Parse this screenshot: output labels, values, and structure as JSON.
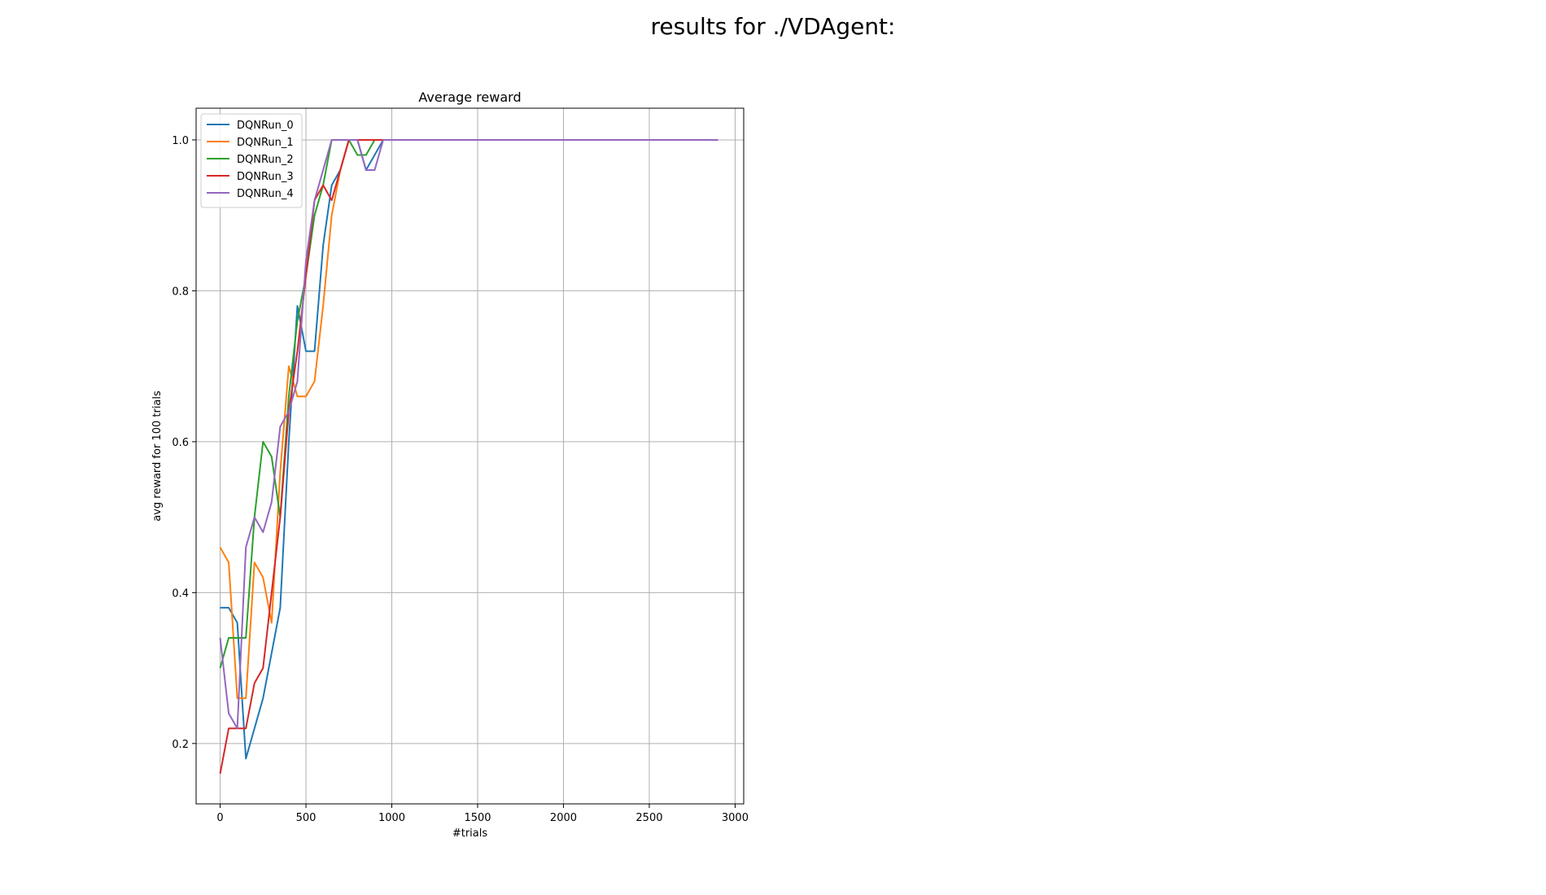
{
  "figure": {
    "title": "results for ./VDAgent:"
  },
  "chart_data": {
    "type": "line",
    "title": "Average reward",
    "xlabel": "#trials",
    "ylabel": "avg reward for 100 trials",
    "xlim": [
      -140,
      3050
    ],
    "ylim": [
      0.12,
      1.042
    ],
    "xticks": [
      0,
      500,
      1000,
      1500,
      2000,
      2500,
      3000
    ],
    "yticks": [
      0.2,
      0.4,
      0.6,
      0.8,
      1.0
    ],
    "xtick_labels": [
      "0",
      "500",
      "1000",
      "1500",
      "2000",
      "2500",
      "3000"
    ],
    "ytick_labels": [
      "0.2",
      "0.4",
      "0.6",
      "0.8",
      "1.0"
    ],
    "grid": true,
    "legend_position": "upper-left",
    "x": [
      0,
      50,
      100,
      150,
      200,
      250,
      300,
      350,
      400,
      450,
      500,
      550,
      600,
      650,
      700,
      750,
      800,
      850,
      900,
      950,
      1000,
      1050,
      1100,
      1150,
      1200,
      1250,
      1300,
      1350,
      1400,
      1450,
      1500,
      1550,
      1600,
      1650,
      1700,
      1750,
      1800,
      1850,
      1900,
      1950,
      2000,
      2050,
      2100,
      2150,
      2200,
      2250,
      2300,
      2350,
      2400,
      2450,
      2500,
      2550,
      2600,
      2650,
      2700,
      2750,
      2800,
      2850,
      2900
    ],
    "series": [
      {
        "name": "DQNRun_0",
        "color": "#1f77b4",
        "values": [
          0.38,
          0.38,
          0.36,
          0.18,
          0.22,
          0.26,
          0.32,
          0.38,
          0.6,
          0.78,
          0.72,
          0.72,
          0.86,
          0.94,
          0.96,
          1.0,
          1.0,
          0.96,
          0.98,
          1.0,
          1.0,
          1.0,
          1.0,
          1.0,
          1.0,
          1.0,
          1.0,
          1.0,
          1.0,
          1.0,
          1.0,
          1.0,
          1.0,
          1.0,
          1.0,
          1.0,
          1.0,
          1.0,
          1.0,
          1.0,
          1.0,
          1.0,
          1.0,
          1.0,
          1.0,
          1.0,
          1.0,
          1.0,
          1.0,
          1.0,
          1.0,
          1.0,
          1.0,
          1.0,
          1.0,
          1.0,
          1.0,
          1.0,
          1.0
        ]
      },
      {
        "name": "DQNRun_1",
        "color": "#ff7f0e",
        "values": [
          0.46,
          0.44,
          0.26,
          0.26,
          0.44,
          0.42,
          0.36,
          0.56,
          0.7,
          0.66,
          0.66,
          0.68,
          0.78,
          0.9,
          0.96,
          1.0,
          1.0,
          1.0,
          1.0,
          1.0,
          1.0,
          1.0,
          1.0,
          1.0,
          1.0,
          1.0,
          1.0,
          1.0,
          1.0,
          1.0,
          1.0,
          1.0,
          1.0,
          1.0,
          1.0,
          1.0,
          1.0,
          1.0,
          1.0,
          1.0,
          1.0,
          1.0,
          1.0,
          1.0,
          1.0,
          1.0,
          1.0,
          1.0,
          1.0,
          1.0,
          1.0,
          1.0,
          1.0,
          1.0,
          1.0,
          1.0,
          1.0,
          1.0,
          1.0
        ]
      },
      {
        "name": "DQNRun_2",
        "color": "#2ca02c",
        "values": [
          0.3,
          0.34,
          0.34,
          0.34,
          0.5,
          0.6,
          0.58,
          0.5,
          0.66,
          0.76,
          0.82,
          0.9,
          0.94,
          1.0,
          1.0,
          1.0,
          0.98,
          0.98,
          1.0,
          1.0,
          1.0,
          1.0,
          1.0,
          1.0,
          1.0,
          1.0,
          1.0,
          1.0,
          1.0,
          1.0,
          1.0,
          1.0,
          1.0,
          1.0,
          1.0,
          1.0,
          1.0,
          1.0,
          1.0,
          1.0,
          1.0,
          1.0,
          1.0,
          1.0,
          1.0,
          1.0,
          1.0,
          1.0,
          1.0,
          1.0,
          1.0,
          1.0,
          1.0,
          1.0,
          1.0,
          1.0,
          1.0,
          1.0,
          1.0
        ]
      },
      {
        "name": "DQNRun_3",
        "color": "#d62728",
        "values": [
          0.16,
          0.22,
          0.22,
          0.22,
          0.28,
          0.3,
          0.4,
          0.5,
          0.64,
          0.72,
          0.82,
          0.92,
          0.94,
          0.92,
          0.96,
          1.0,
          1.0,
          1.0,
          1.0,
          1.0,
          1.0,
          1.0,
          1.0,
          1.0,
          1.0,
          1.0,
          1.0,
          1.0,
          1.0,
          1.0,
          1.0,
          1.0,
          1.0,
          1.0,
          1.0,
          1.0,
          1.0,
          1.0,
          1.0,
          1.0,
          1.0,
          1.0,
          1.0,
          1.0,
          1.0,
          1.0,
          1.0,
          1.0,
          1.0,
          1.0,
          1.0,
          1.0,
          1.0,
          1.0,
          1.0,
          1.0,
          1.0,
          1.0,
          1.0
        ]
      },
      {
        "name": "DQNRun_4",
        "color": "#9467bd",
        "values": [
          0.34,
          0.24,
          0.22,
          0.46,
          0.5,
          0.48,
          0.52,
          0.62,
          0.64,
          0.68,
          0.84,
          0.92,
          0.96,
          1.0,
          1.0,
          1.0,
          1.0,
          0.96,
          0.96,
          1.0,
          1.0,
          1.0,
          1.0,
          1.0,
          1.0,
          1.0,
          1.0,
          1.0,
          1.0,
          1.0,
          1.0,
          1.0,
          1.0,
          1.0,
          1.0,
          1.0,
          1.0,
          1.0,
          1.0,
          1.0,
          1.0,
          1.0,
          1.0,
          1.0,
          1.0,
          1.0,
          1.0,
          1.0,
          1.0,
          1.0,
          1.0,
          1.0,
          1.0,
          1.0,
          1.0,
          1.0,
          1.0,
          1.0,
          1.0
        ]
      }
    ]
  }
}
